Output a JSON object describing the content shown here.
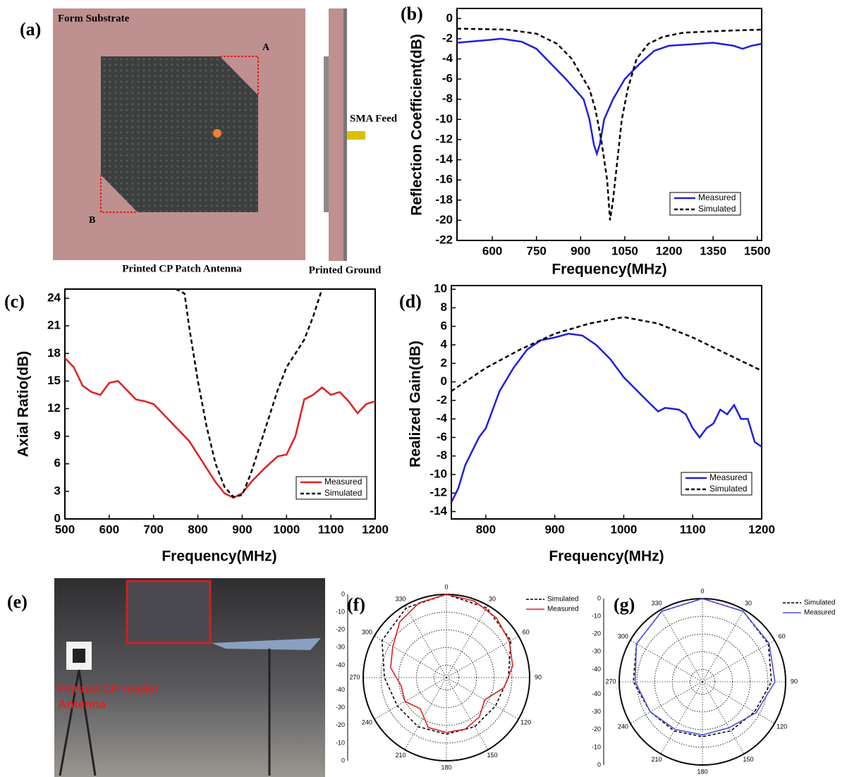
{
  "diagram_a": {
    "panel": "(a)",
    "substrate": "Form Substrate",
    "corner_a": "A",
    "corner_b": "B",
    "feed": "SMA Feed",
    "patch_caption": "Printed CP Patch Antenna",
    "ground_caption": "Printed Ground"
  },
  "photo_e": {
    "panel": "(e)",
    "label_lines": [
      "Printed CP reader",
      "Antenna"
    ]
  },
  "chart_data": [
    {
      "type": "line",
      "panel": "(b)",
      "xlabel": "Frequency(MHz)",
      "ylabel": "Reflection Coefficient(dB)",
      "xlim": [
        480,
        1515
      ],
      "xticks": [
        600,
        750,
        900,
        1050,
        1200,
        1350,
        1500
      ],
      "ylim": [
        -22,
        1
      ],
      "yticks": [
        0,
        -2,
        -4,
        -6,
        -8,
        -10,
        -12,
        -14,
        -16,
        -18,
        -20,
        -22
      ],
      "legend": "lower right",
      "series": [
        {
          "name": "Measured",
          "color": "#1f1fe0",
          "dashed": false,
          "x": [
            480,
            600,
            630,
            700,
            750,
            800,
            850,
            880,
            910,
            930,
            945,
            955,
            965,
            980,
            1010,
            1050,
            1100,
            1150,
            1200,
            1300,
            1350,
            1420,
            1450,
            1480,
            1515
          ],
          "values": [
            -2.4,
            -2.1,
            -2.0,
            -2.3,
            -3,
            -4.5,
            -6,
            -7,
            -8,
            -10,
            -12.5,
            -13.4,
            -12.5,
            -10,
            -8,
            -6,
            -4.5,
            -3.2,
            -2.7,
            -2.5,
            -2.4,
            -2.7,
            -3,
            -2.7,
            -2.5
          ]
        },
        {
          "name": "Simulated",
          "color": "#000000",
          "dashed": true,
          "x": [
            480,
            650,
            750,
            820,
            870,
            900,
            930,
            950,
            970,
            990,
            1000,
            1010,
            1025,
            1040,
            1060,
            1090,
            1130,
            1180,
            1250,
            1400,
            1515
          ],
          "values": [
            -1.0,
            -1.1,
            -1.5,
            -2.5,
            -4,
            -5.5,
            -7,
            -9,
            -12,
            -16,
            -20,
            -18,
            -14,
            -10,
            -7,
            -4,
            -2.5,
            -1.8,
            -1.4,
            -1.2,
            -1.1
          ]
        }
      ]
    },
    {
      "type": "line",
      "panel": "(c)",
      "xlabel": "Frequency(MHz)",
      "ylabel": "Axial Ratio(dB)",
      "xlim": [
        500,
        1200
      ],
      "xticks": [
        500,
        600,
        700,
        800,
        900,
        1000,
        1100,
        1200
      ],
      "ylim": [
        0,
        25
      ],
      "yticks": [
        0,
        3,
        6,
        9,
        12,
        15,
        18,
        21,
        24
      ],
      "legend": "lower right",
      "series": [
        {
          "name": "Measured",
          "color": "#e02020",
          "dashed": false,
          "x": [
            500,
            520,
            540,
            560,
            580,
            600,
            620,
            640,
            660,
            680,
            700,
            720,
            750,
            780,
            800,
            820,
            840,
            860,
            880,
            900,
            920,
            950,
            980,
            1000,
            1020,
            1040,
            1060,
            1080,
            1100,
            1120,
            1140,
            1160,
            1180,
            1200
          ],
          "values": [
            17.5,
            16.5,
            14.5,
            13.8,
            13.5,
            14.8,
            15,
            14,
            13,
            12.8,
            12.5,
            11.5,
            10,
            8.5,
            7,
            5.5,
            4,
            2.8,
            2.3,
            2.8,
            4,
            5.5,
            6.8,
            7,
            9,
            13,
            13.5,
            14.3,
            13.5,
            13.8,
            12.8,
            11.5,
            12.5,
            12.8
          ]
        },
        {
          "name": "Simulated",
          "color": "#000000",
          "dashed": true,
          "x": [
            750,
            760,
            770,
            780,
            800,
            820,
            840,
            860,
            880,
            900,
            920,
            940,
            960,
            980,
            1000,
            1020,
            1040,
            1060,
            1080
          ],
          "values": [
            25,
            24.8,
            24.5,
            21,
            15,
            10,
            6,
            3.5,
            2.4,
            2.6,
            5,
            8,
            11,
            14,
            16.5,
            18,
            19.5,
            22,
            25
          ]
        }
      ]
    },
    {
      "type": "line",
      "panel": "(d)",
      "xlabel": "Frequency(MHz)",
      "ylabel": "Realized Gain(dB)",
      "xlim": [
        750,
        1200
      ],
      "xticks": [
        800,
        900,
        1000,
        1100,
        1200
      ],
      "ylim": [
        -14.8,
        10.4
      ],
      "yticks": [
        10,
        8,
        6,
        4,
        2,
        0,
        -2,
        -4,
        -6,
        -8,
        -10,
        -12,
        -14
      ],
      "legend": "lower right",
      "series": [
        {
          "name": "Measured",
          "color": "#1f1fe0",
          "dashed": false,
          "x": [
            750,
            760,
            770,
            790,
            800,
            820,
            840,
            860,
            880,
            900,
            920,
            940,
            960,
            980,
            1000,
            1020,
            1040,
            1050,
            1060,
            1080,
            1090,
            1100,
            1110,
            1120,
            1130,
            1140,
            1150,
            1160,
            1170,
            1180,
            1190,
            1200
          ],
          "values": [
            -13,
            -11.5,
            -9,
            -6,
            -5,
            -1,
            1.5,
            3.5,
            4.5,
            4.8,
            5.2,
            5,
            4,
            2.5,
            0.5,
            -1,
            -2.5,
            -3.2,
            -2.8,
            -3,
            -3.5,
            -5,
            -6,
            -5,
            -4.5,
            -3,
            -3.5,
            -2.5,
            -4,
            -4,
            -6.5,
            -7
          ]
        },
        {
          "name": "Simulated",
          "color": "#000000",
          "dashed": true,
          "x": [
            750,
            800,
            850,
            900,
            950,
            1000,
            1050,
            1100,
            1150,
            1200
          ],
          "values": [
            -1,
            1.5,
            3.5,
            5.2,
            6.3,
            7,
            6.3,
            4.8,
            3,
            1.2
          ]
        }
      ]
    },
    {
      "type": "polar",
      "panel": "(f)",
      "rlim": [
        -47,
        0
      ],
      "rticks": [
        0,
        -10,
        -20,
        -30,
        -40
      ],
      "thetaticks": [
        0,
        30,
        60,
        90,
        120,
        150,
        180,
        210,
        240,
        270,
        300,
        330
      ],
      "legend": "upper right",
      "series": [
        {
          "name": "Simulated",
          "color": "#000000",
          "dashed": true,
          "theta": [
            0,
            30,
            60,
            90,
            120,
            150,
            180,
            210,
            240,
            270,
            300,
            330
          ],
          "values": [
            0,
            -1.5,
            -5,
            -12,
            -15,
            -15,
            -15,
            -15,
            -15,
            -12,
            -5,
            -1.5
          ]
        },
        {
          "name": "Measured",
          "color": "#e02020",
          "dashed": false,
          "theta": [
            0,
            20,
            40,
            60,
            80,
            100,
            120,
            140,
            160,
            180,
            200,
            220,
            240,
            260,
            280,
            300,
            320,
            340
          ],
          "values": [
            0,
            -1,
            -3,
            -6,
            -9,
            -14,
            -22,
            -18,
            -16,
            -16,
            -17,
            -24,
            -20,
            -21,
            -15,
            -12,
            -6,
            -2
          ]
        }
      ]
    },
    {
      "type": "polar",
      "panel": "(g)",
      "rlim": [
        -47,
        0
      ],
      "rticks": [
        0,
        -10,
        -20,
        -30,
        -40
      ],
      "thetaticks": [
        0,
        30,
        60,
        90,
        120,
        150,
        180,
        210,
        240,
        270,
        300,
        330
      ],
      "legend": "upper right",
      "series": [
        {
          "name": "Simulated",
          "color": "#000000",
          "dashed": true,
          "theta": [
            0,
            30,
            60,
            90,
            120,
            150,
            180,
            210,
            240,
            270,
            300,
            330
          ],
          "values": [
            0,
            -1,
            -4,
            -8,
            -13,
            -15,
            -16,
            -15,
            -13,
            -8,
            -4,
            -1
          ]
        },
        {
          "name": "Measured",
          "color": "#5050e0",
          "dashed": false,
          "theta": [
            0,
            30,
            60,
            90,
            120,
            150,
            180,
            210,
            240,
            270,
            300,
            330
          ],
          "values": [
            0,
            -1,
            -3.5,
            -6,
            -12,
            -17,
            -17,
            -16,
            -13,
            -9,
            -4,
            -1
          ]
        }
      ]
    }
  ]
}
